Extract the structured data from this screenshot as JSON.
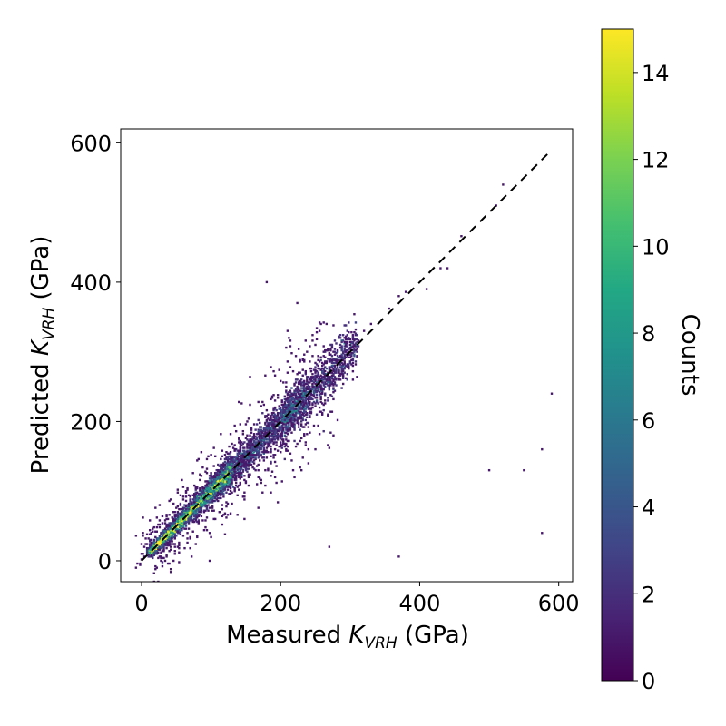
{
  "chart_data": {
    "type": "heatmap",
    "subtype": "2d-histogram scatter (hexbin-like density of measured vs predicted)",
    "xlabel": {
      "main": "Measured ",
      "var": "K",
      "sub": "VRH",
      "unit": " (GPa)"
    },
    "ylabel": {
      "main": "Predicted ",
      "var": "K",
      "sub": "VRH",
      "unit": " (GPa)"
    },
    "xlim": [
      -30,
      620
    ],
    "ylim": [
      -30,
      620
    ],
    "xticks": [
      0,
      200,
      400,
      600
    ],
    "yticks": [
      0,
      200,
      400,
      600
    ],
    "xtick_labels": [
      "0",
      "200",
      "400",
      "600"
    ],
    "ytick_labels": [
      "0",
      "200",
      "400",
      "600"
    ],
    "reference_line": {
      "style": "dashed",
      "color": "#000000",
      "from": [
        0,
        0
      ],
      "to": [
        590,
        590
      ]
    },
    "colorbar": {
      "label": "Counts",
      "colormap": "viridis",
      "range": [
        0,
        15
      ],
      "ticks": [
        0,
        2,
        4,
        6,
        8,
        10,
        12,
        14
      ],
      "tick_labels": [
        "0",
        "2",
        "4",
        "6",
        "8",
        "10",
        "12",
        "14"
      ]
    },
    "density": {
      "description": "Most points lie along y=x between 0 and 300 GPa; highest counts (~13-15) near 20-90 GPa; sparse outliers up to ~590 GPa.",
      "core_range": [
        0,
        300
      ],
      "peak_count": 15,
      "peak_range": [
        20,
        90
      ]
    },
    "outliers": [
      [
        410,
        390
      ],
      [
        430,
        420
      ],
      [
        440,
        420
      ],
      [
        380,
        385
      ],
      [
        370,
        380
      ],
      [
        355,
        362
      ],
      [
        330,
        340
      ],
      [
        320,
        330
      ],
      [
        300,
        310
      ],
      [
        510,
        510
      ],
      [
        520,
        540
      ],
      [
        460,
        465
      ],
      [
        590,
        240
      ],
      [
        575,
        40
      ],
      [
        575,
        160
      ],
      [
        550,
        130
      ],
      [
        500,
        130
      ],
      [
        370,
        5
      ],
      [
        270,
        20
      ],
      [
        180,
        400
      ],
      [
        290,
        280
      ],
      [
        250,
        160
      ],
      [
        240,
        160
      ]
    ],
    "grid": false,
    "legend": "none"
  }
}
